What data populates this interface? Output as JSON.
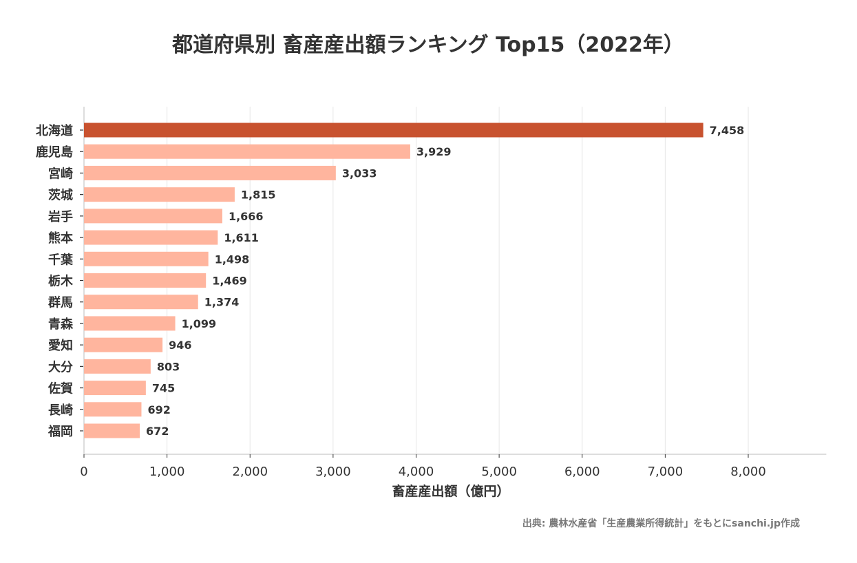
{
  "chart_data": {
    "type": "bar",
    "orientation": "horizontal",
    "title": "都道府県別 畜産産出額ランキング Top15（2022年）",
    "xlabel": "畜産産出額（億円）",
    "ylabel": "",
    "xlim": [
      0,
      8940
    ],
    "xticks": [
      0,
      1000,
      2000,
      3000,
      4000,
      5000,
      6000,
      7000,
      8000
    ],
    "xtick_labels": [
      "0",
      "1,000",
      "2,000",
      "3,000",
      "4,000",
      "5,000",
      "6,000",
      "7,000",
      "8,000"
    ],
    "grid": "vertical",
    "categories": [
      "北海道",
      "鹿児島",
      "宮崎",
      "茨城",
      "岩手",
      "熊本",
      "千葉",
      "栃木",
      "群馬",
      "青森",
      "愛知",
      "大分",
      "佐賀",
      "長崎",
      "福岡"
    ],
    "values": [
      7458,
      3929,
      3033,
      1815,
      1666,
      1611,
      1498,
      1469,
      1374,
      1099,
      946,
      803,
      745,
      692,
      672
    ],
    "data_labels": [
      "7,458",
      "3,929",
      "3,033",
      "1,815",
      "1,666",
      "1,611",
      "1,498",
      "1,469",
      "1,374",
      "1,099",
      "946",
      "803",
      "745",
      "692",
      "672"
    ],
    "colors": {
      "highlight": "#c8522f",
      "default": "#ffb59e",
      "grid": "#e6e6e6",
      "text": "#333333"
    },
    "source": "出典: 農林水産省「生産農業所得統計」をもとにsanchi.jp作成"
  }
}
